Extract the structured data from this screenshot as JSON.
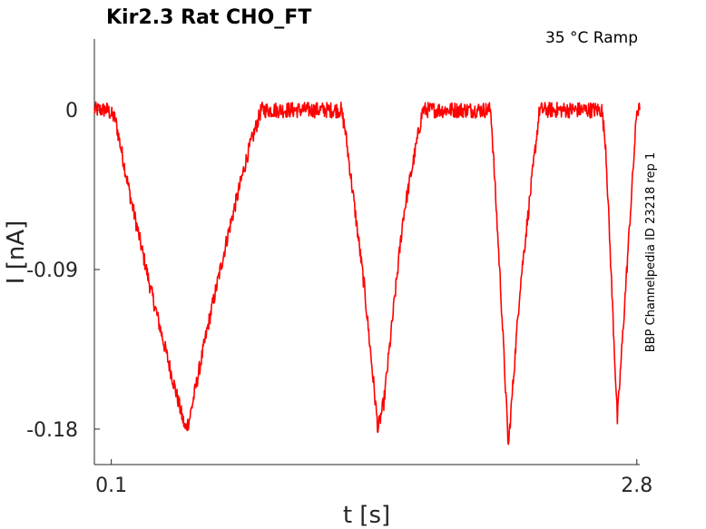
{
  "chart_data": {
    "type": "line",
    "title": "Kir2.3  Rat  CHO_FT",
    "subtitle": "35 °C  Ramp",
    "side_label": "BBP Channelpedia ID 23218 rep 1",
    "xlabel": "t [s]",
    "ylabel": "I [nA]",
    "xticks": [
      0.1,
      2.8
    ],
    "xtick_labels": [
      "0.1",
      "2.8"
    ],
    "yticks": [
      0,
      -0.09,
      -0.18
    ],
    "ytick_labels": [
      "0",
      "-0.09",
      "-0.18"
    ],
    "xlim": [
      0.013,
      2.815
    ],
    "ylim": [
      -0.2,
      0.04
    ],
    "grid": false,
    "series": [
      {
        "color": "#ff0000",
        "x": [
          0.013,
          0.08,
          0.12,
          0.2,
          0.3,
          0.4,
          0.48,
          0.5,
          0.6,
          0.7,
          0.8,
          0.87,
          0.9,
          1.0,
          1.1,
          1.2,
          1.28,
          1.3,
          1.4,
          1.47,
          1.5,
          1.6,
          1.7,
          1.8,
          1.9,
          2.0,
          2.05,
          2.1,
          2.14,
          2.2,
          2.3,
          2.4,
          2.5,
          2.56,
          2.62,
          2.64,
          2.7,
          2.8,
          2.815
        ],
        "y": [
          0.0,
          0.0,
          -0.005,
          -0.05,
          -0.1,
          -0.145,
          -0.18,
          -0.175,
          -0.12,
          -0.07,
          -0.025,
          0.0,
          0.0,
          0.0,
          0.0,
          0.0,
          0.0,
          -0.01,
          -0.1,
          -0.18,
          -0.165,
          -0.06,
          0.0,
          0.0,
          0.0,
          0.0,
          0.0,
          -0.1,
          -0.19,
          -0.1,
          0.0,
          0.0,
          0.0,
          0.0,
          0.0,
          -0.02,
          -0.175,
          0.0,
          0.0
        ],
        "noise_amplitude": 0.0045
      }
    ]
  }
}
